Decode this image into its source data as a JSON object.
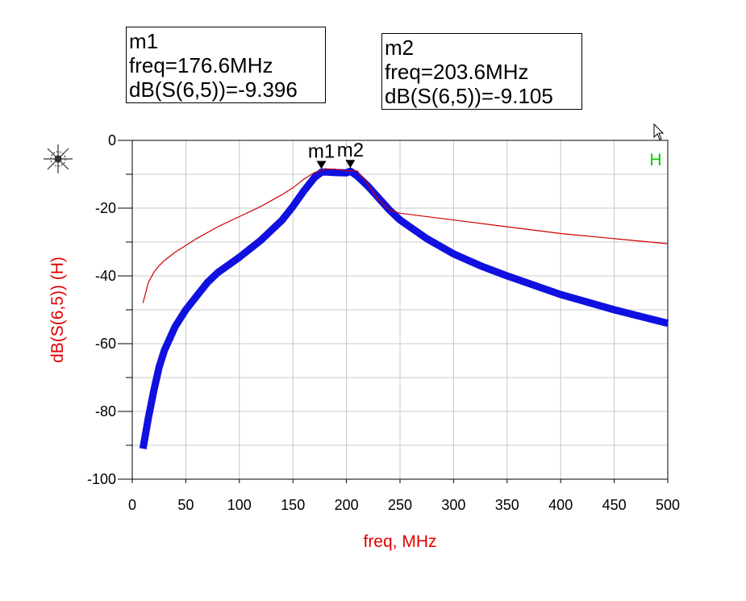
{
  "chart_data": {
    "type": "line",
    "xlabel": "freq, MHz",
    "ylabel": "dB(S(6,5))  (H)",
    "xlim": [
      0,
      500
    ],
    "ylim": [
      -100,
      0
    ],
    "x_ticks": [
      0,
      50,
      100,
      150,
      200,
      250,
      300,
      350,
      400,
      450,
      500
    ],
    "y_ticks": [
      0,
      -20,
      -40,
      -60,
      -80,
      -100
    ],
    "grid": true,
    "legend_label": "H",
    "colors": {
      "thick_trace": "#1010e0",
      "thin_trace": "#cc0000",
      "legend": "#00cc00",
      "axis_labels": "#e00000"
    },
    "series": [
      {
        "style": "thick",
        "x": [
          10,
          15,
          20,
          25,
          30,
          40,
          50,
          60,
          70,
          80,
          100,
          120,
          140,
          150,
          160,
          170,
          176.6,
          180,
          190,
          200,
          203.6,
          210,
          220,
          230,
          240,
          250,
          275,
          300,
          325,
          350,
          400,
          450,
          500
        ],
        "y": [
          -91,
          -82,
          -74,
          -67,
          -62,
          -55,
          -50,
          -46,
          -42,
          -39,
          -34.5,
          -29.5,
          -23.5,
          -19.5,
          -15,
          -11,
          -9.4,
          -9.3,
          -9.5,
          -9.6,
          -9.1,
          -10.5,
          -13.5,
          -17,
          -20.5,
          -23.5,
          -29,
          -33.5,
          -37,
          -40,
          -45.5,
          -50,
          -54
        ]
      },
      {
        "style": "thin",
        "x": [
          10,
          15,
          20,
          25,
          30,
          40,
          50,
          60,
          80,
          100,
          120,
          140,
          150,
          160,
          170,
          180,
          190,
          200,
          210,
          220,
          230,
          240,
          250,
          300,
          350,
          400,
          450,
          500
        ],
        "y": [
          -48,
          -42,
          -39,
          -37,
          -35.5,
          -33,
          -31,
          -29,
          -25.5,
          -22.5,
          -19.5,
          -16,
          -14,
          -11.5,
          -9.5,
          -8.5,
          -8.5,
          -9,
          -9,
          -13,
          -17.5,
          -20.5,
          -21.5,
          -23.5,
          -25.5,
          -27.5,
          -29,
          -30.5
        ]
      }
    ],
    "markers": [
      {
        "name": "m1",
        "freq": 176.6,
        "value": -9.396,
        "freq_text": "freq=176.6MHz",
        "value_text": "dB(S(6,5))=-9.396"
      },
      {
        "name": "m2",
        "freq": 203.6,
        "value": -9.105,
        "freq_text": "freq=203.6MHz",
        "value_text": "dB(S(6,5))=-9.105"
      }
    ]
  }
}
